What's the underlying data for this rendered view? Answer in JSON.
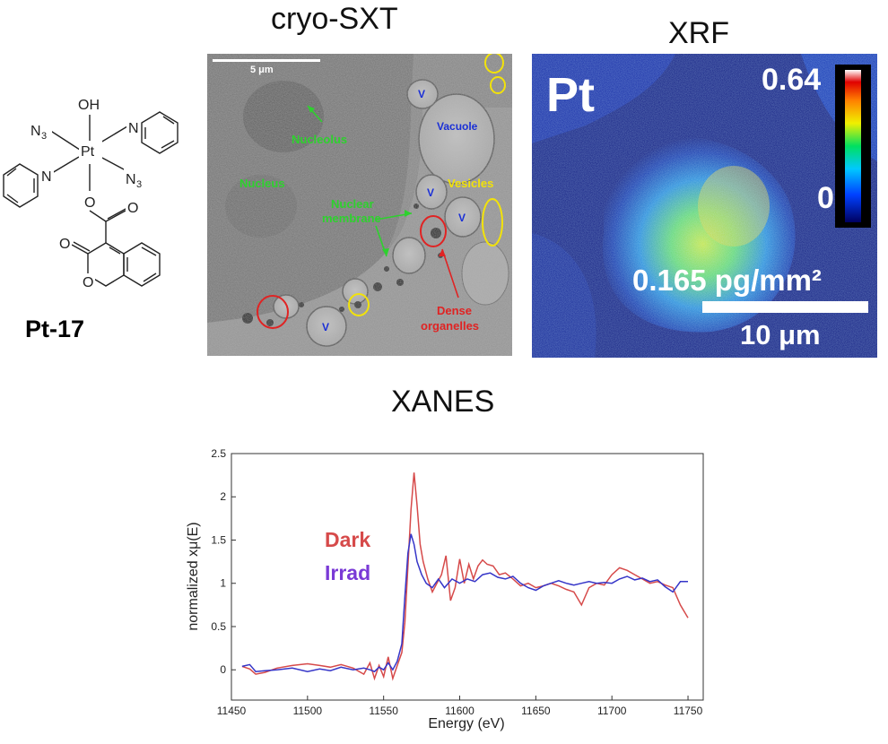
{
  "titles": {
    "sxt": "cryo-SXT",
    "xrf": "XRF",
    "xanes": "XANES"
  },
  "molecule": {
    "name": "Pt-17",
    "atoms": {
      "oh": "OH",
      "pt": "Pt",
      "n3_left": "N",
      "n3_left_sub": "3",
      "n3_right": "N",
      "n3_right_sub": "3",
      "n_pyr_top": "N",
      "n_pyr_left": "N",
      "o_ester": "O",
      "o_carbonyl": "O",
      "o_lactone_carbonyl": "O",
      "o_ring": "O"
    }
  },
  "sxt": {
    "scale_bar": "5 μm",
    "labels": {
      "nucleolus": "Nucleolus",
      "nucleus": "Nucleus",
      "nuclear_membrane_1": "Nuclear",
      "nuclear_membrane_2": "membrane",
      "vacuole": "Vacuole",
      "vesicles": "Vesicles",
      "dense_1": "Dense",
      "dense_2": "organelles",
      "v": "V"
    },
    "colors": {
      "green": "#2ed12e",
      "yellow": "#f2e20a",
      "red": "#e02323",
      "blue": "#1a2fd6"
    }
  },
  "xrf": {
    "element": "Pt",
    "colorbar_max": "0.64",
    "colorbar_min": "0",
    "concentration": "0.165 pg/mm²",
    "scale_bar": "10 μm"
  },
  "chart_data": {
    "type": "line",
    "title": "XANES",
    "xlabel": "Energy   (eV)",
    "ylabel": "normalized xμ(E)",
    "xlim": [
      11450,
      11760
    ],
    "ylim": [
      -0.35,
      2.5
    ],
    "xticks": [
      11450,
      11500,
      11550,
      11600,
      11650,
      11700,
      11750
    ],
    "yticks": [
      0,
      0.5,
      1,
      1.5,
      2,
      2.5
    ],
    "legend_position": "left-middle",
    "series": [
      {
        "name": "Dark",
        "color": "#d64a4a",
        "x": [
          11457,
          11462,
          11466,
          11472,
          11480,
          11490,
          11500,
          11508,
          11515,
          11522,
          11530,
          11537,
          11541,
          11544,
          11547,
          11550,
          11553,
          11556,
          11559,
          11562,
          11564,
          11566,
          11568,
          11570,
          11572,
          11574,
          11576,
          11579,
          11582,
          11585,
          11588,
          11591,
          11594,
          11597,
          11600,
          11603,
          11606,
          11609,
          11612,
          11615,
          11618,
          11622,
          11626,
          11630,
          11635,
          11640,
          11645,
          11650,
          11655,
          11660,
          11665,
          11670,
          11675,
          11680,
          11685,
          11690,
          11695,
          11700,
          11705,
          11710,
          11715,
          11720,
          11725,
          11730,
          11735,
          11740,
          11745,
          11750
        ],
        "y": [
          0.04,
          0.01,
          -0.05,
          -0.03,
          0.02,
          0.05,
          0.07,
          0.05,
          0.03,
          0.06,
          0.02,
          -0.05,
          0.08,
          -0.1,
          0.05,
          -0.08,
          0.15,
          -0.1,
          0.05,
          0.2,
          0.55,
          1.2,
          1.85,
          2.28,
          1.9,
          1.45,
          1.25,
          1.05,
          0.9,
          1.0,
          1.1,
          1.32,
          0.8,
          0.95,
          1.28,
          1.0,
          1.22,
          1.05,
          1.2,
          1.27,
          1.22,
          1.2,
          1.1,
          1.12,
          1.05,
          0.97,
          1.0,
          0.95,
          0.97,
          1.0,
          0.97,
          0.93,
          0.9,
          0.75,
          0.95,
          1.0,
          0.98,
          1.1,
          1.18,
          1.15,
          1.1,
          1.05,
          1.0,
          1.02,
          0.98,
          0.95,
          0.75,
          0.6
        ]
      },
      {
        "name": "Irrad",
        "color": "#3535c8",
        "x": [
          11457,
          11462,
          11466,
          11472,
          11480,
          11490,
          11500,
          11508,
          11515,
          11522,
          11530,
          11537,
          11541,
          11544,
          11547,
          11550,
          11553,
          11556,
          11559,
          11562,
          11564,
          11566,
          11568,
          11570,
          11572,
          11575,
          11578,
          11582,
          11586,
          11590,
          11595,
          11600,
          11605,
          11610,
          11615,
          11620,
          11625,
          11630,
          11635,
          11640,
          11645,
          11650,
          11655,
          11660,
          11665,
          11670,
          11675,
          11680,
          11685,
          11690,
          11695,
          11700,
          11705,
          11710,
          11715,
          11720,
          11725,
          11730,
          11735,
          11740,
          11745,
          11750
        ],
        "y": [
          0.04,
          0.06,
          -0.02,
          -0.01,
          0.0,
          0.02,
          -0.02,
          0.01,
          -0.01,
          0.03,
          0.0,
          0.02,
          0.0,
          -0.02,
          0.03,
          0.0,
          0.08,
          0.0,
          0.1,
          0.3,
          0.85,
          1.35,
          1.57,
          1.45,
          1.25,
          1.1,
          1.0,
          0.95,
          1.05,
          0.95,
          1.05,
          1.0,
          1.05,
          1.02,
          1.1,
          1.12,
          1.07,
          1.05,
          1.08,
          1.0,
          0.95,
          0.92,
          0.97,
          1.0,
          1.03,
          1.0,
          0.98,
          1.0,
          1.02,
          1.0,
          1.01,
          1.0,
          1.05,
          1.08,
          1.04,
          1.06,
          1.02,
          1.04,
          0.96,
          0.9,
          1.02,
          1.02
        ]
      }
    ]
  }
}
